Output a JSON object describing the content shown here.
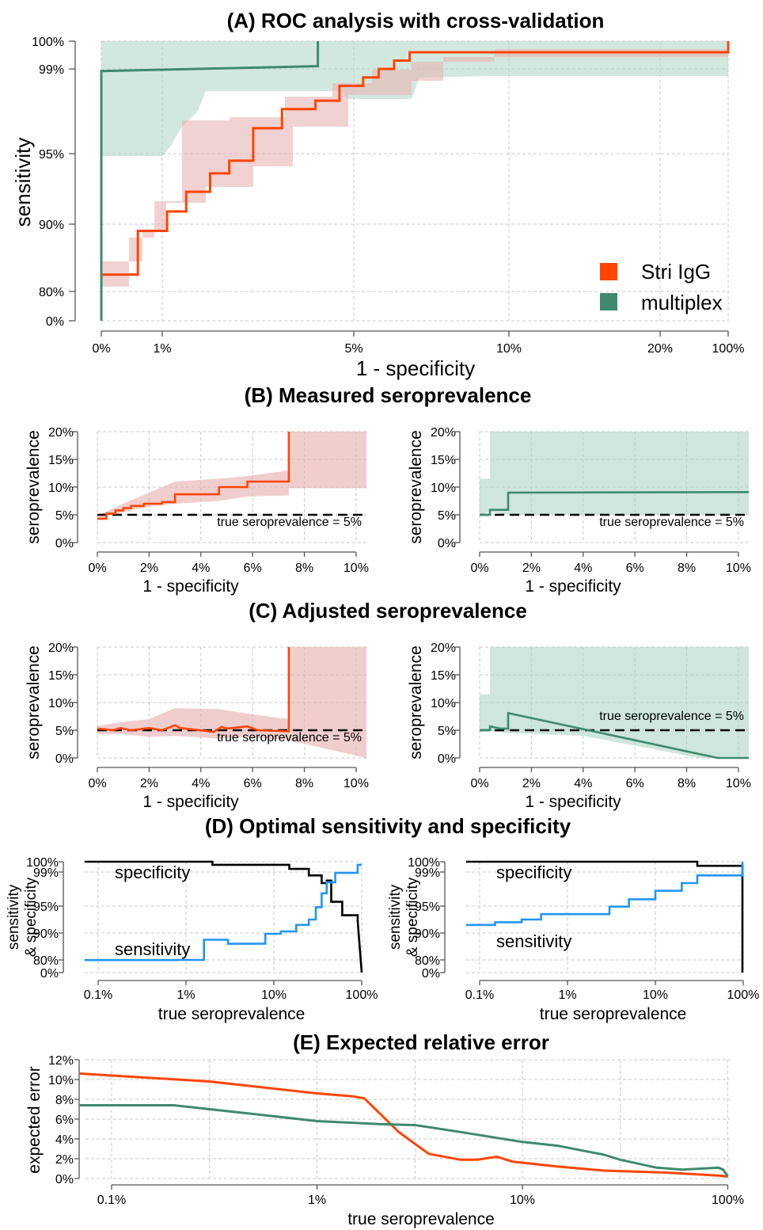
{
  "colors": {
    "stri": "#ff4500",
    "multiplex": "#3e8a6e",
    "stri_band": "#e8b4b4",
    "multiplex_band": "#b4d8c8",
    "overlap_band": "#c4b8b0",
    "sensitivity": "#2196f3",
    "specificity": "#000000"
  },
  "panels": {
    "A": {
      "title": "(A) ROC analysis with cross-validation",
      "xlabel": "1 - specificity",
      "ylabel": "sensitivity"
    },
    "B": {
      "title": "(B) Measured seroprevalence",
      "xlabel": "1 - specificity",
      "ylabel": "seroprevalence",
      "annotation": "true seroprevalence = 5%"
    },
    "C": {
      "title": "(C) Adjusted seroprevalence",
      "xlabel": "1 - specificity",
      "ylabel": "seroprevalence",
      "annotation": "true seroprevalence = 5%"
    },
    "D": {
      "title": "(D) Optimal sensitivity and specificity",
      "xlabel": "true seroprevalence",
      "ylabel1": "sensitivity",
      "ylabel2": "& specificity",
      "spec_label": "specificity",
      "sens_label": "sensitivity"
    },
    "E": {
      "title": "(E) Expected relative error",
      "xlabel": "true seroprevalence",
      "ylabel": "expected error"
    }
  },
  "legend": [
    {
      "name": "Stri IgG",
      "color_key": "stri"
    },
    {
      "name": "multiplex",
      "color_key": "multiplex"
    }
  ],
  "chart_data": [
    {
      "id": "A",
      "type": "line",
      "scale": "custom-warped",
      "x_ticks": [
        "0%",
        "1%",
        "5%",
        "10%",
        "20%",
        "100%"
      ],
      "y_ticks": [
        "0%",
        "80%",
        "90%",
        "95%",
        "99%",
        "100%"
      ],
      "series": [
        {
          "name": "Stri IgG",
          "color_key": "stri",
          "x": [
            0,
            0.6,
            0.6,
            1.1,
            1.1,
            1.5,
            1.5,
            2.0,
            2.0,
            2.4,
            2.4,
            2.9,
            2.9,
            3.5,
            3.5,
            4.2,
            4.2,
            4.7,
            4.7,
            5.3,
            5.3,
            5.8,
            5.8,
            6.3,
            6.3,
            6.8,
            6.8,
            100,
            100
          ],
          "y": [
            82.5,
            82.5,
            89,
            89,
            90.9,
            90.9,
            92.3,
            92.3,
            93.6,
            93.6,
            94.5,
            94.5,
            96.2,
            96.2,
            97.1,
            97.1,
            97.5,
            97.5,
            98.2,
            98.2,
            98.6,
            98.6,
            99.0,
            99.0,
            99.3,
            99.3,
            99.6,
            99.6,
            100
          ]
        },
        {
          "name": "multiplex",
          "color_key": "multiplex",
          "x": [
            0,
            0,
            4.25,
            4.25
          ],
          "y": [
            0,
            98.9,
            99.1,
            100
          ]
        }
      ]
    },
    {
      "id": "B-left",
      "type": "line",
      "series_color": "stri",
      "x_ticks": [
        "0%",
        "2%",
        "4%",
        "6%",
        "8%",
        "10%"
      ],
      "y_ticks": [
        "0%",
        "5%",
        "10%",
        "15%",
        "20%"
      ],
      "xlim": [
        0,
        10.4
      ],
      "ylim": [
        0,
        20
      ],
      "reference": 5,
      "x": [
        0,
        0.35,
        0.35,
        0.7,
        0.7,
        1.0,
        1.0,
        1.3,
        1.3,
        1.8,
        1.8,
        2.5,
        2.5,
        3.0,
        3.0,
        4.7,
        4.7,
        5.8,
        5.8,
        7.4,
        7.4
      ],
      "y": [
        4.3,
        4.3,
        5.2,
        5.2,
        5.8,
        5.8,
        6.2,
        6.2,
        6.6,
        6.6,
        7.0,
        7.0,
        7.3,
        7.3,
        8.7,
        8.7,
        10.0,
        10.0,
        11.0,
        11.0,
        20
      ]
    },
    {
      "id": "B-right",
      "type": "line",
      "series_color": "multiplex",
      "x_ticks": [
        "0%",
        "2%",
        "4%",
        "6%",
        "8%",
        "10%"
      ],
      "y_ticks": [
        "0%",
        "5%",
        "10%",
        "15%",
        "20%"
      ],
      "xlim": [
        0,
        10.4
      ],
      "ylim": [
        0,
        20
      ],
      "reference": 5,
      "x": [
        0,
        0.4,
        0.4,
        1.1,
        1.1,
        10.4
      ],
      "y": [
        5,
        5,
        5.9,
        5.9,
        9.0,
        9.1
      ]
    },
    {
      "id": "C-left",
      "type": "line",
      "series_color": "stri",
      "x_ticks": [
        "0%",
        "2%",
        "4%",
        "6%",
        "8%",
        "10%"
      ],
      "y_ticks": [
        "0%",
        "5%",
        "10%",
        "15%",
        "20%"
      ],
      "xlim": [
        0,
        10.4
      ],
      "ylim": [
        0,
        20
      ],
      "reference": 5,
      "x": [
        0,
        0.6,
        0.9,
        1.3,
        2.0,
        2.5,
        3.0,
        3.2,
        4.5,
        4.8,
        5.0,
        5.8,
        6.2,
        7.4,
        7.4
      ],
      "y": [
        5.3,
        5.0,
        5.4,
        5.0,
        5.4,
        5.0,
        5.9,
        5.4,
        4.7,
        5.6,
        5.3,
        5.7,
        5.0,
        4.8,
        20
      ]
    },
    {
      "id": "C-right",
      "type": "line",
      "series_color": "multiplex",
      "x_ticks": [
        "0%",
        "2%",
        "4%",
        "6%",
        "8%",
        "10%"
      ],
      "y_ticks": [
        "0%",
        "5%",
        "10%",
        "15%",
        "20%"
      ],
      "xlim": [
        0,
        10.4
      ],
      "ylim": [
        0,
        20
      ],
      "reference": 5,
      "x": [
        0,
        0.4,
        0.4,
        0.8,
        1.1,
        1.1,
        9.2,
        10.4
      ],
      "y": [
        5,
        5,
        5.7,
        5.3,
        5.3,
        8.1,
        0,
        0
      ]
    },
    {
      "id": "D-left",
      "type": "line",
      "x_ticks": [
        "0.1%",
        "1%",
        "10%",
        "100%"
      ],
      "y_ticks": [
        "0%",
        "80%",
        "90%",
        "95%",
        "99%",
        "100%"
      ],
      "series": [
        {
          "name": "specificity",
          "color_key": "specificity",
          "x": [
            0.07,
            2,
            2,
            15,
            15,
            25,
            25,
            35,
            35,
            40,
            40,
            45,
            45,
            60,
            60,
            90,
            90,
            100
          ],
          "y": [
            100,
            100,
            99.7,
            99.7,
            99.3,
            99.3,
            98.6,
            98.6,
            97.7,
            97.7,
            98.0,
            98.0,
            95.5,
            95.5,
            93.3,
            93.3,
            92.2,
            0
          ]
        },
        {
          "name": "sensitivity",
          "color_key": "sensitivity",
          "x": [
            0.07,
            0.8,
            0.8,
            1.6,
            1.6,
            3,
            3,
            8,
            8,
            12,
            12,
            18,
            18,
            25,
            25,
            30,
            30,
            35,
            35,
            40,
            40,
            50,
            50,
            90,
            90,
            100
          ],
          "y": [
            79,
            79,
            80,
            80,
            87.5,
            87.5,
            86,
            86,
            89.7,
            89.7,
            90.3,
            90.3,
            91.5,
            91.5,
            92.5,
            92.5,
            94.8,
            94.8,
            96.5,
            96.5,
            97.8,
            97.8,
            98.9,
            98.9,
            99.7,
            99.7
          ]
        }
      ]
    },
    {
      "id": "D-right",
      "type": "line",
      "x_ticks": [
        "0.1%",
        "1%",
        "10%",
        "100%"
      ],
      "y_ticks": [
        "0%",
        "80%",
        "90%",
        "95%",
        "99%",
        "100%"
      ],
      "series": [
        {
          "name": "specificity",
          "color_key": "specificity",
          "x": [
            0.07,
            30,
            30,
            98,
            98
          ],
          "y": [
            100,
            100,
            99.6,
            99.6,
            0
          ]
        },
        {
          "name": "sensitivity",
          "color_key": "sensitivity",
          "x": [
            0.07,
            0.15,
            0.15,
            0.3,
            0.3,
            0.5,
            0.5,
            3,
            3,
            5,
            5,
            10,
            10,
            20,
            20,
            30,
            30,
            98,
            98
          ],
          "y": [
            91.5,
            91.5,
            92,
            92,
            92.5,
            92.5,
            93.5,
            93.5,
            94.9,
            94.9,
            95.8,
            95.8,
            96.8,
            96.8,
            97.7,
            97.7,
            98.6,
            98.6,
            100
          ]
        }
      ]
    },
    {
      "id": "E",
      "type": "line",
      "x_ticks": [
        "0.1%",
        "1%",
        "10%",
        "100%"
      ],
      "y_ticks": [
        "0%",
        "2%",
        "4%",
        "6%",
        "8%",
        "10%",
        "12%"
      ],
      "ylim": [
        0,
        12
      ],
      "series": [
        {
          "name": "Stri IgG",
          "color_key": "stri",
          "x": [
            0.07,
            0.3,
            1,
            1.5,
            1.7,
            2.5,
            3.5,
            5,
            6,
            7.5,
            9,
            15,
            25,
            50,
            90,
            100
          ],
          "y": [
            10.6,
            9.8,
            8.6,
            8.3,
            8.1,
            4.7,
            2.5,
            1.9,
            1.9,
            2.2,
            1.7,
            1.2,
            0.8,
            0.6,
            0.3,
            0.2
          ]
        },
        {
          "name": "multiplex",
          "color_key": "multiplex",
          "x": [
            0.07,
            0.2,
            0.5,
            1,
            2,
            3,
            5,
            10,
            15,
            25,
            30,
            45,
            60,
            90,
            95,
            100
          ],
          "y": [
            7.4,
            7.4,
            6.5,
            5.8,
            5.5,
            5.4,
            4.7,
            3.7,
            3.3,
            2.4,
            1.9,
            1.1,
            0.9,
            1.1,
            0.9,
            0.2
          ]
        }
      ]
    }
  ]
}
